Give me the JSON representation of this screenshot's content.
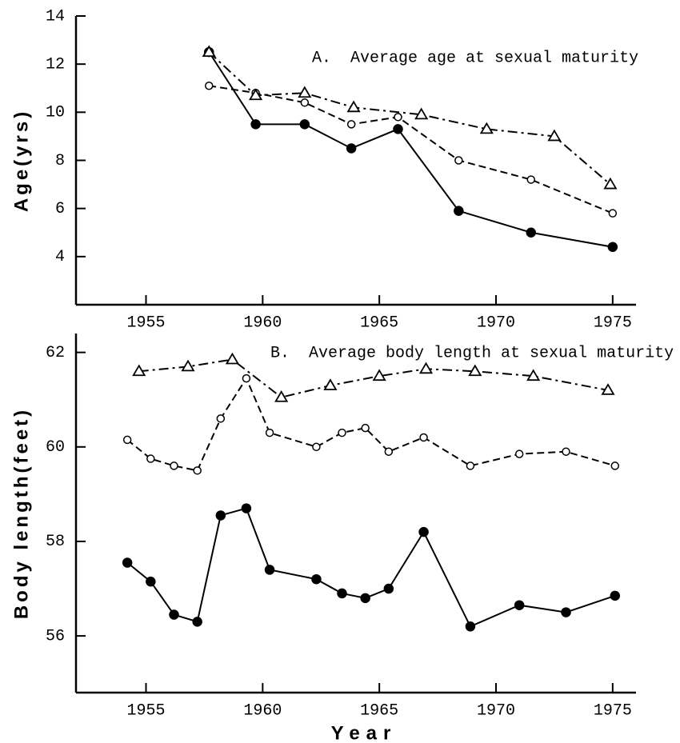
{
  "chart_data": [
    {
      "type": "line",
      "annotation": "A.  Average age at sexual maturity",
      "ylabel": "Age(yrs)",
      "xlim": [
        1952,
        1976
      ],
      "xticks": [
        1955,
        1960,
        1965,
        1970,
        1975
      ],
      "ylim": [
        2,
        14
      ],
      "yticks": [
        4,
        6,
        8,
        10,
        12,
        14
      ],
      "series": [
        {
          "color": "#000000",
          "marker": "filled-circle",
          "dash": "solid",
          "x": [
            1957.7,
            1959.7,
            1961.8,
            1963.8,
            1965.8,
            1968.4,
            1971.5,
            1975.0
          ],
          "values": [
            12.5,
            9.5,
            9.5,
            8.5,
            9.3,
            5.9,
            5.0,
            4.4
          ]
        },
        {
          "color": "#000000",
          "marker": "open-circle",
          "dash": "dashed",
          "x": [
            1957.7,
            1959.7,
            1961.8,
            1963.8,
            1965.8,
            1968.4,
            1971.5,
            1975.0
          ],
          "values": [
            11.1,
            10.8,
            10.4,
            9.5,
            9.8,
            8.0,
            7.2,
            5.8
          ]
        },
        {
          "color": "#000000",
          "marker": "open-triangle",
          "dash": "dash-dot",
          "x": [
            1957.7,
            1959.7,
            1961.8,
            1963.9,
            1966.8,
            1969.6,
            1972.5,
            1974.9
          ],
          "values": [
            12.5,
            10.7,
            10.8,
            10.2,
            9.9,
            9.3,
            9.0,
            7.0
          ]
        }
      ]
    },
    {
      "type": "line",
      "annotation": "B.  Average body length at sexual maturity",
      "ylabel": "Body length(feet)",
      "xlabel": "Year",
      "xlim": [
        1952,
        1976
      ],
      "xticks": [
        1955,
        1960,
        1965,
        1970,
        1975
      ],
      "ylim": [
        54.8,
        62.4
      ],
      "yticks": [
        56,
        58,
        60,
        62
      ],
      "series": [
        {
          "color": "#000000",
          "marker": "filled-circle",
          "dash": "solid",
          "x": [
            1954.2,
            1955.2,
            1956.2,
            1957.2,
            1958.2,
            1959.3,
            1960.3,
            1962.3,
            1963.4,
            1964.4,
            1965.4,
            1966.9,
            1968.9,
            1971.0,
            1973.0,
            1975.1
          ],
          "values": [
            57.55,
            57.15,
            56.45,
            56.3,
            58.55,
            58.7,
            57.4,
            57.2,
            56.9,
            56.8,
            57.0,
            58.2,
            56.2,
            56.65,
            56.5,
            56.85
          ]
        },
        {
          "color": "#000000",
          "marker": "open-circle",
          "dash": "dashed",
          "x": [
            1954.2,
            1955.2,
            1956.2,
            1957.2,
            1958.2,
            1959.3,
            1960.3,
            1962.3,
            1963.4,
            1964.4,
            1965.4,
            1966.9,
            1968.9,
            1971.0,
            1973.0,
            1975.1
          ],
          "values": [
            60.15,
            59.75,
            59.6,
            59.5,
            60.6,
            61.45,
            60.3,
            60.0,
            60.3,
            60.4,
            59.9,
            60.2,
            59.6,
            59.85,
            59.9,
            59.6
          ]
        },
        {
          "color": "#000000",
          "marker": "open-triangle",
          "dash": "dash-dot",
          "x": [
            1954.7,
            1956.8,
            1958.7,
            1960.8,
            1962.9,
            1965.0,
            1967.0,
            1969.1,
            1971.6,
            1974.8
          ],
          "values": [
            61.6,
            61.7,
            61.85,
            61.05,
            61.3,
            61.5,
            61.65,
            61.6,
            61.5,
            61.2
          ]
        }
      ]
    }
  ]
}
